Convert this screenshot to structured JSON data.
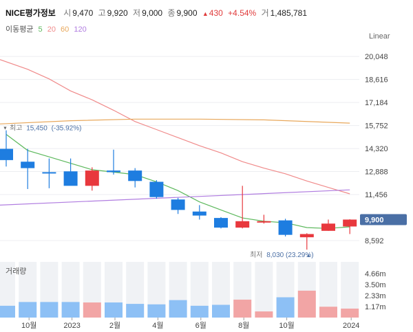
{
  "header": {
    "stock_name": "NICE평가정보",
    "open_label": "시",
    "open_value": "9,470",
    "high_label": "고",
    "high_value": "9,920",
    "low_label": "저",
    "low_value": "9,000",
    "close_label": "종",
    "close_value": "9,900",
    "change_arrow": "▲",
    "change_value": "430",
    "change_pct": "+4.54%",
    "volume_label": "거",
    "volume_value": "1,485,781"
  },
  "ma_legend": {
    "label": "이동평균",
    "periods": [
      "5",
      "20",
      "60",
      "120"
    ],
    "colors": [
      "#5cb85c",
      "#f08a8a",
      "#e8a75a",
      "#b07ce0"
    ]
  },
  "scale_button": "Linear",
  "colors": {
    "up": "#e8383d",
    "down": "#1e7de0",
    "vol_up": "#f2a5a5",
    "vol_down": "#8dc0f5",
    "vol_bg": "#f0f2f5",
    "last_badge": "#4a6fa5"
  },
  "chart_data": {
    "type": "candlestick",
    "period": "weekly",
    "price_axis": {
      "ticks": [
        "20,048",
        "18,616",
        "17,184",
        "15,752",
        "14,320",
        "12,888",
        "11,456",
        "8,592"
      ],
      "tick_values": [
        20048,
        18616,
        17184,
        15752,
        14320,
        12888,
        11456,
        8592
      ],
      "range": [
        7824,
        20736
      ]
    },
    "last_price": {
      "value": 9900,
      "label": "9,900"
    },
    "high_marker": {
      "label": "최고",
      "value": 15450,
      "value_label": "15,450",
      "pct": "(-35.92%)"
    },
    "low_marker": {
      "label": "최저",
      "value": 8030,
      "value_label": "8,030",
      "pct": "(23.29%)"
    },
    "candles": [
      {
        "open": 14300,
        "high": 15450,
        "low": 13200,
        "close": 13600
      },
      {
        "open": 13500,
        "high": 14300,
        "low": 11800,
        "close": 13100
      },
      {
        "open": 12850,
        "high": 13700,
        "low": 11850,
        "close": 12800
      },
      {
        "open": 12900,
        "high": 13700,
        "low": 12050,
        "close": 12000
      },
      {
        "open": 12000,
        "high": 13150,
        "low": 11700,
        "close": 12950
      },
      {
        "open": 12950,
        "high": 14250,
        "low": 12700,
        "close": 12850
      },
      {
        "open": 12950,
        "high": 13100,
        "low": 11900,
        "close": 12300
      },
      {
        "open": 12250,
        "high": 12350,
        "low": 11200,
        "close": 11300
      },
      {
        "open": 11150,
        "high": 11250,
        "low": 10250,
        "close": 10500
      },
      {
        "open": 10400,
        "high": 10800,
        "low": 9900,
        "close": 10150
      },
      {
        "open": 10000,
        "high": 10050,
        "low": 9350,
        "close": 9400
      },
      {
        "open": 9400,
        "high": 12000,
        "low": 9350,
        "close": 9800
      },
      {
        "open": 9750,
        "high": 10200,
        "low": 9650,
        "close": 9800
      },
      {
        "open": 9850,
        "high": 9950,
        "low": 8850,
        "close": 8950
      },
      {
        "open": 8800,
        "high": 9050,
        "low": 8030,
        "close": 9000
      },
      {
        "open": 9200,
        "high": 9900,
        "low": 9200,
        "close": 9650
      },
      {
        "open": 9470,
        "high": 9920,
        "low": 9000,
        "close": 9900
      }
    ],
    "moving_averages": [
      {
        "period": "5",
        "points": [
          [
            0,
            15200
          ],
          [
            1,
            14200
          ],
          [
            2,
            13800
          ],
          [
            3,
            13400
          ],
          [
            4,
            13000
          ],
          [
            5,
            12850
          ],
          [
            6,
            12700
          ],
          [
            7,
            12250
          ],
          [
            8,
            11700
          ],
          [
            9,
            11000
          ],
          [
            10,
            10500
          ],
          [
            11,
            10000
          ],
          [
            12,
            9800
          ],
          [
            13,
            9700
          ],
          [
            14,
            9400
          ],
          [
            15,
            9350
          ],
          [
            16,
            9450
          ]
        ]
      },
      {
        "period": "20",
        "points": [
          [
            -0.3,
            19850
          ],
          [
            1,
            19250
          ],
          [
            2,
            18650
          ],
          [
            3,
            17900
          ],
          [
            4,
            17350
          ],
          [
            5,
            16700
          ],
          [
            6,
            16000
          ],
          [
            7,
            15500
          ],
          [
            8,
            15000
          ],
          [
            9,
            14500
          ],
          [
            10,
            14050
          ],
          [
            11,
            13500
          ],
          [
            12,
            13100
          ],
          [
            13,
            12750
          ],
          [
            14,
            12300
          ],
          [
            15,
            11900
          ],
          [
            16,
            11500
          ]
        ]
      },
      {
        "period": "60",
        "points": [
          [
            -0.3,
            15850
          ],
          [
            3,
            16050
          ],
          [
            6,
            16150
          ],
          [
            9,
            16150
          ],
          [
            12,
            16100
          ],
          [
            16,
            15900
          ]
        ]
      },
      {
        "period": "120",
        "points": [
          [
            -0.3,
            10800
          ],
          [
            16,
            11750
          ]
        ]
      }
    ],
    "volume": {
      "label": "거래량",
      "ticks": [
        "4.66m",
        "3.50m",
        "2.33m",
        "1.17m"
      ],
      "tick_values": [
        4.66,
        3.5,
        2.33,
        1.17
      ],
      "max": 5.9,
      "values": [
        1.25,
        1.65,
        1.65,
        1.65,
        1.6,
        1.6,
        1.45,
        1.4,
        1.85,
        1.25,
        1.35,
        1.9,
        0.65,
        2.15,
        2.85,
        1.15,
        0.95
      ]
    },
    "x_axis": {
      "labels": [
        {
          "text": "10월",
          "index": 1
        },
        {
          "text": "2023",
          "index": 3
        },
        {
          "text": "2월",
          "index": 5
        },
        {
          "text": "4월",
          "index": 7
        },
        {
          "text": "6월",
          "index": 9
        },
        {
          "text": "8월",
          "index": 11
        },
        {
          "text": "10월",
          "index": 13
        },
        {
          "text": "2024",
          "index": 16
        }
      ]
    }
  }
}
